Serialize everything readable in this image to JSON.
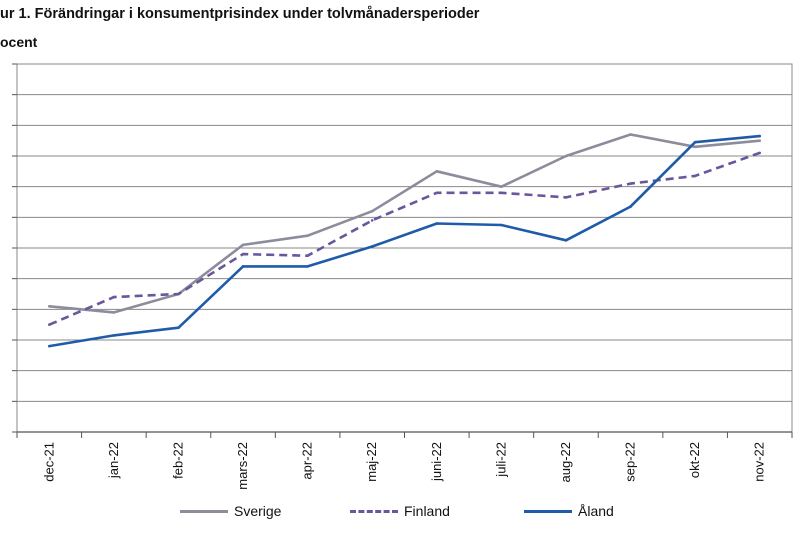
{
  "chart_data": {
    "type": "line",
    "title": "ur 1. Förändringar i konsumentprisindex under tolvmånadersperioder",
    "ylabel": "ocent",
    "ylim": [
      0,
      12
    ],
    "grid": true,
    "legend_position": "bottom",
    "categories": [
      "dec-21",
      "jan-22",
      "feb-22",
      "mars-22",
      "apr-22",
      "maj-22",
      "juni-22",
      "juli-22",
      "aug-22",
      "sep-22",
      "okt-22",
      "nov-22"
    ],
    "series": [
      {
        "name": "Sverige",
        "color": "#8c8c9c",
        "dash": "solid",
        "values": [
          4.1,
          3.9,
          4.5,
          6.1,
          6.4,
          7.2,
          8.5,
          8.0,
          9.0,
          9.7,
          9.3,
          9.5
        ]
      },
      {
        "name": "Finland",
        "color": "#6b569b",
        "dash": "dashed",
        "values": [
          3.5,
          4.4,
          4.5,
          5.8,
          5.75,
          6.9,
          7.8,
          7.8,
          7.65,
          8.1,
          8.35,
          9.1
        ]
      },
      {
        "name": "Åland",
        "color": "#1f5ba8",
        "dash": "solid",
        "values": [
          2.8,
          3.15,
          3.4,
          5.4,
          5.4,
          6.05,
          6.8,
          6.75,
          6.25,
          7.35,
          9.45,
          9.65
        ]
      }
    ]
  }
}
